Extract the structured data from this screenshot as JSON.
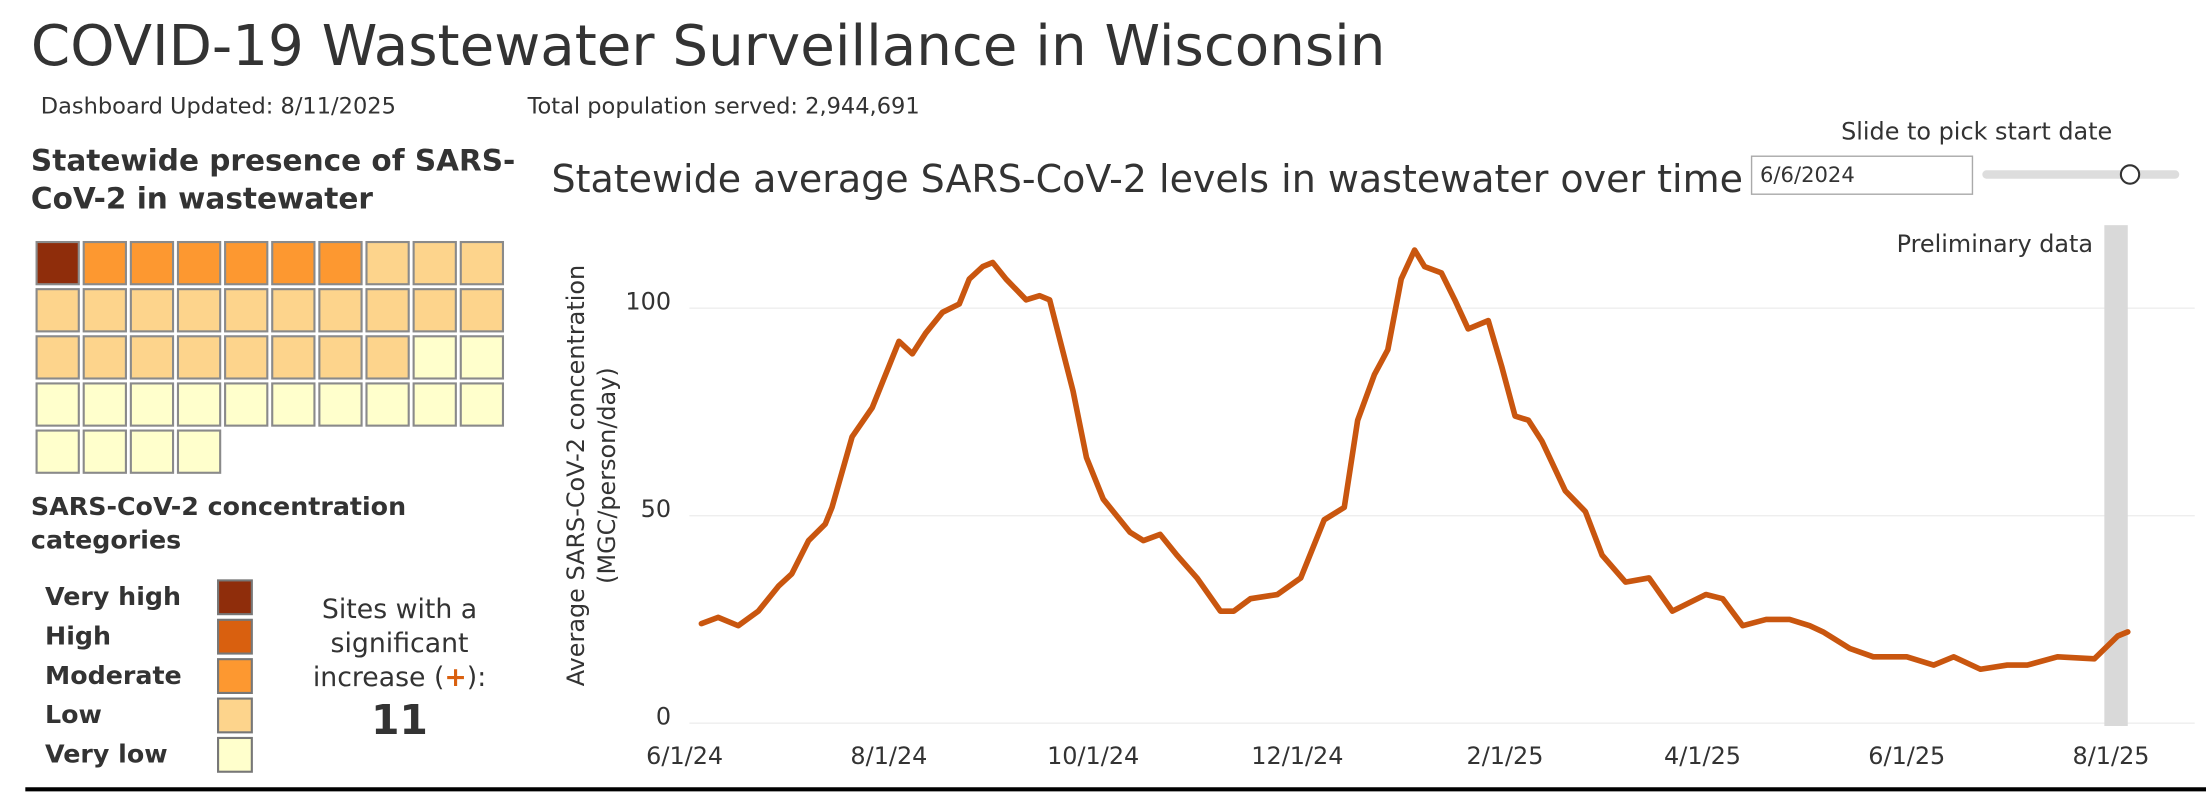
{
  "header": {
    "title": "COVID-19 Wastewater Surveillance in Wisconsin",
    "updated": "Dashboard Updated: 8/11/2025",
    "population": "Total population served: 2,944,691"
  },
  "waffle": {
    "title": [
      "Statewide presence of SARS-",
      "CoV-2 in wastewater"
    ],
    "legend_title": [
      "SARS-CoV-2 concentration",
      "categories"
    ],
    "categories": [
      "Very high",
      "High",
      "Moderate",
      "Low",
      "Very low"
    ],
    "colors": [
      "#8f2d0b",
      "#d9600f",
      "#fd9830",
      "#fdd48c",
      "#ffffcc"
    ],
    "counts": [
      1,
      0,
      6,
      21,
      16
    ]
  },
  "increase": {
    "lines": [
      "Sites with a",
      "significant",
      "increase ("
    ],
    "symbol": "+",
    "close": "):",
    "value": "11"
  },
  "slider": {
    "label": "Slide to pick start date",
    "date": "6/6/2024"
  },
  "chart_data": {
    "type": "line",
    "title": "Statewide average SARS-CoV-2 levels in wastewater over time",
    "y_label": [
      "Average SARS-CoV-2 concentration",
      "(MGC/person/day)"
    ],
    "annotation": "Preliminary data",
    "shaded_region": [
      "2025-07-30",
      "2025-08-06"
    ],
    "x": [
      "2024-06-06",
      "2024-06-11",
      "2024-06-17",
      "2024-06-23",
      "2024-06-29",
      "2024-07-03",
      "2024-07-08",
      "2024-07-13",
      "2024-07-15",
      "2024-07-21",
      "2024-07-27",
      "2024-08-01",
      "2024-08-04",
      "2024-08-08",
      "2024-08-12",
      "2024-08-17",
      "2024-08-22",
      "2024-08-25",
      "2024-08-29",
      "2024-09-01",
      "2024-09-05",
      "2024-09-11",
      "2024-09-15",
      "2024-09-18",
      "2024-09-25",
      "2024-09-29",
      "2024-10-04",
      "2024-10-12",
      "2024-10-16",
      "2024-10-21",
      "2024-10-26",
      "2024-11-01",
      "2024-11-08",
      "2024-11-12",
      "2024-11-17",
      "2024-11-25",
      "2024-12-02",
      "2024-12-09",
      "2024-12-15",
      "2024-12-19",
      "2024-12-24",
      "2024-12-28",
      "2025-01-01",
      "2025-01-05",
      "2025-01-08",
      "2025-01-13",
      "2025-01-17",
      "2025-01-21",
      "2025-01-27",
      "2025-01-31",
      "2025-02-04",
      "2025-02-08",
      "2025-02-12",
      "2025-02-19",
      "2025-02-25",
      "2025-03-02",
      "2025-03-09",
      "2025-03-16",
      "2025-03-23",
      "2025-04-02",
      "2025-04-07",
      "2025-04-13",
      "2025-04-20",
      "2025-04-27",
      "2025-05-03",
      "2025-05-07",
      "2025-05-15",
      "2025-05-22",
      "2025-06-01",
      "2025-06-09",
      "2025-06-15",
      "2025-06-23",
      "2025-07-01",
      "2025-07-07",
      "2025-07-16",
      "2025-07-27",
      "2025-08-03",
      "2025-08-06"
    ],
    "series": [
      {
        "name": "Statewide average",
        "color": "#c9560f",
        "values": [
          24,
          25.5,
          23.5,
          27,
          33,
          36,
          44,
          48,
          52,
          69,
          76,
          86,
          92,
          89,
          94,
          99,
          101,
          107,
          110,
          111,
          107,
          102,
          103,
          102,
          80,
          64,
          54,
          46,
          44,
          45.5,
          40.5,
          35,
          27,
          27,
          30,
          31,
          35,
          49,
          52,
          73,
          84,
          90,
          107,
          114,
          110,
          108.5,
          102,
          95,
          97,
          86,
          74,
          73,
          68,
          56,
          51,
          40.5,
          34,
          35,
          27,
          31,
          30,
          23.5,
          25,
          25,
          23.5,
          22,
          18,
          16,
          16,
          14,
          16,
          13,
          14,
          14,
          16,
          15.5,
          21,
          22
        ]
      }
    ],
    "xlim": [
      "2024-05-25",
      "2025-08-26"
    ],
    "xticks": [
      {
        "value": "2024-06-01",
        "label": "6/1/24"
      },
      {
        "value": "2024-08-01",
        "label": "8/1/24"
      },
      {
        "value": "2024-10-01",
        "label": "10/1/24"
      },
      {
        "value": "2024-12-01",
        "label": "12/1/24"
      },
      {
        "value": "2025-02-01",
        "label": "2/1/25"
      },
      {
        "value": "2025-04-01",
        "label": "4/1/25"
      },
      {
        "value": "2025-06-01",
        "label": "6/1/25"
      },
      {
        "value": "2025-08-01",
        "label": "8/1/25"
      }
    ],
    "ylim": [
      0,
      120
    ],
    "yticks": [
      0,
      50,
      100
    ],
    "grid": true
  }
}
